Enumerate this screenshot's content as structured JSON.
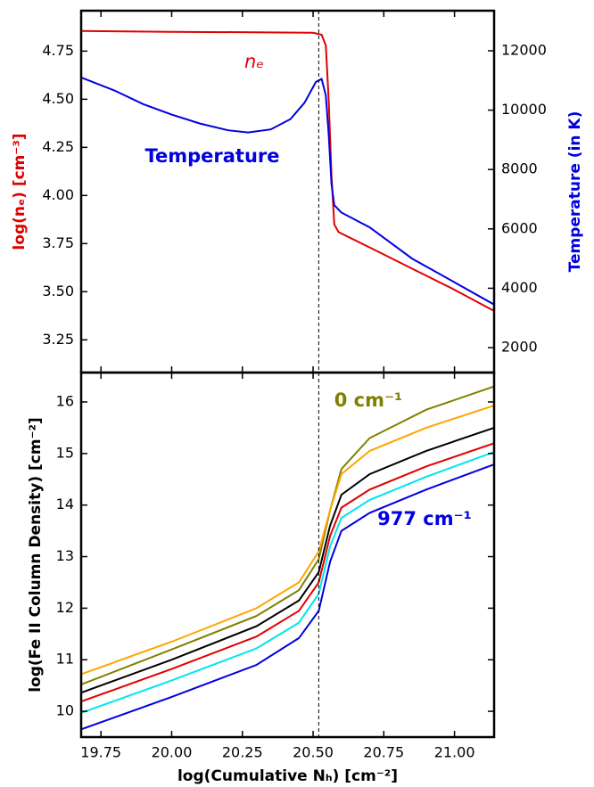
{
  "chart_data": [
    {
      "type": "line",
      "ylabel": "log(nₑ) [cm⁻³]",
      "ylabel_color": "#e00000",
      "y2label": "Temperature (in K)",
      "y2label_color": "#0000e0",
      "xlim": [
        19.68,
        21.14
      ],
      "xticks": [
        19.75,
        {
          "value": 20,
          "label": "20.00"
        },
        20.25,
        {
          "value": 20.5,
          "label": "20.50"
        },
        20.75,
        {
          "value": 21,
          "label": "21.00"
        }
      ],
      "xtick_labels": false,
      "ylim": [
        3.08,
        4.96
      ],
      "yticks": [
        3.25,
        {
          "value": 3.5,
          "label": "3.50"
        },
        3.75,
        {
          "value": 4,
          "label": "4.00"
        },
        4.25,
        {
          "value": 4.5,
          "label": "4.50"
        },
        4.75
      ],
      "y2lim": [
        1160,
        13350
      ],
      "y2ticks": [
        2000,
        4000,
        6000,
        8000,
        10000,
        12000
      ],
      "vline": 20.52,
      "series": [
        {
          "color": "#e00000",
          "x": [
            19.68,
            20.0,
            20.3,
            20.5,
            20.53,
            20.545,
            20.555,
            20.565,
            20.575,
            20.59,
            20.7,
            20.85,
            21.0,
            21.14
          ],
          "values": [
            4.855,
            4.85,
            4.848,
            4.845,
            4.835,
            4.78,
            4.5,
            4.1,
            3.85,
            3.81,
            3.73,
            3.62,
            3.51,
            3.4
          ]
        },
        {
          "color": "#0000e0",
          "axis": "y2",
          "x": [
            19.68,
            19.8,
            19.9,
            20.0,
            20.1,
            20.2,
            20.27,
            20.35,
            20.42,
            20.47,
            20.51,
            20.53,
            20.545,
            20.555,
            20.565,
            20.575,
            20.6,
            20.7,
            20.85,
            21.0,
            21.14
          ],
          "values": [
            11100,
            10650,
            10200,
            9850,
            9550,
            9320,
            9250,
            9350,
            9700,
            10250,
            10950,
            11050,
            10500,
            9200,
            7500,
            6800,
            6550,
            6050,
            5000,
            4200,
            3450
          ]
        }
      ],
      "annotations": [
        {
          "text": "nₑ",
          "color": "#e00000"
        },
        {
          "text": "Temperature",
          "color": "#0000e0"
        }
      ]
    },
    {
      "type": "line",
      "xlabel": "log(Cumulative Nₕ) [cm⁻²]",
      "ylabel": "log(Fe II Column Density) [cm⁻²]",
      "xlim": [
        19.68,
        21.14
      ],
      "xticks": [
        19.75,
        {
          "value": 20,
          "label": "20.00"
        },
        20.25,
        {
          "value": 20.5,
          "label": "20.50"
        },
        20.75,
        {
          "value": 21,
          "label": "21.00"
        }
      ],
      "ylim": [
        9.5,
        16.57
      ],
      "yticks": [
        10,
        11,
        12,
        13,
        14,
        15,
        16
      ],
      "vline": 20.52,
      "x": [
        19.68,
        20.0,
        20.3,
        20.45,
        20.52,
        20.56,
        20.6,
        20.7,
        20.9,
        21.14
      ],
      "series": [
        {
          "color": "#808000",
          "values": [
            10.52,
            11.2,
            11.85,
            12.35,
            12.95,
            13.9,
            14.7,
            15.3,
            15.85,
            16.3
          ]
        },
        {
          "color": "#ffa500",
          "values": [
            10.72,
            11.35,
            12.0,
            12.5,
            13.1,
            13.9,
            14.6,
            15.05,
            15.5,
            15.93
          ]
        },
        {
          "color": "#000000",
          "values": [
            10.36,
            11.0,
            11.65,
            12.15,
            12.7,
            13.6,
            14.2,
            14.6,
            15.05,
            15.5
          ]
        },
        {
          "color": "#e00000",
          "values": [
            10.19,
            10.82,
            11.45,
            11.95,
            12.5,
            13.4,
            13.95,
            14.3,
            14.75,
            15.2
          ]
        },
        {
          "color": "#00e5ee",
          "values": [
            9.97,
            10.6,
            11.22,
            11.72,
            12.28,
            13.2,
            13.75,
            14.1,
            14.55,
            15.03
          ]
        },
        {
          "color": "#0000e0",
          "values": [
            9.65,
            10.28,
            10.9,
            11.42,
            11.95,
            12.9,
            13.5,
            13.85,
            14.3,
            14.79
          ]
        }
      ],
      "annotations": [
        {
          "text": "0 cm⁻¹",
          "color": "#808000"
        },
        {
          "text": "977 cm⁻¹",
          "color": "#0000e0"
        }
      ]
    }
  ]
}
